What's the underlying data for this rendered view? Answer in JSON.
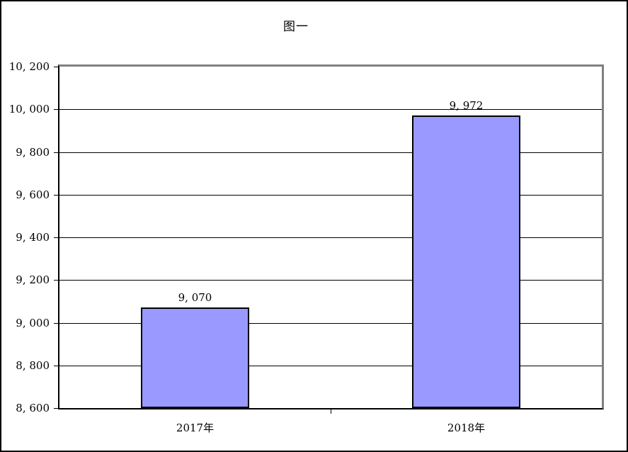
{
  "title": "图一",
  "colors": {
    "bar_fill": "#9999FF",
    "bar_border": "#000000",
    "gridline": "#000000",
    "plot_border_top_right": "#808080",
    "axis": "#000000",
    "page_border": "#000000",
    "background": "#FFFFFF"
  },
  "chart_data": {
    "type": "bar",
    "title": "图一",
    "categories": [
      "2017年",
      "2018年"
    ],
    "values": [
      9070,
      9972
    ],
    "data_labels": [
      "9, 070",
      "9, 972"
    ],
    "xlabel": "",
    "ylabel": "",
    "ylim": [
      8600,
      10200
    ],
    "y_ticks": [
      8600,
      8800,
      9000,
      9200,
      9400,
      9600,
      9800,
      10000,
      10200
    ],
    "y_tick_labels": [
      "8, 600",
      "8, 800",
      "9, 000",
      "9, 200",
      "9, 400",
      "9, 600",
      "9, 800",
      "10, 000",
      "10, 200"
    ],
    "grid": true,
    "legend": false,
    "bar_color": "#9999FF"
  }
}
